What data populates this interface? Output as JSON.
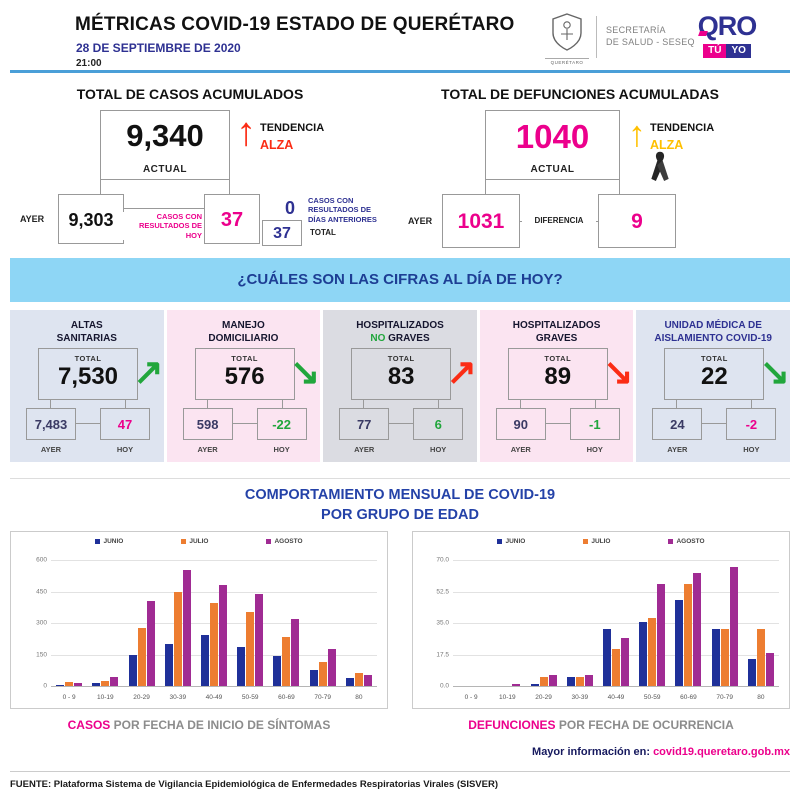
{
  "header": {
    "title": "MÉTRICAS COVID-19 ESTADO DE QUERÉTARO",
    "date": "28 DE SEPTIEMBRE DE 2020",
    "time": "21:00",
    "shield_caption": "QUERÉTARO",
    "secretaria_line1": "SECRETARÍA",
    "secretaria_line2": "DE SALUD - SESEQ",
    "qro_text": "QRO",
    "qro_tu": "TÚ",
    "qro_yo": "YO"
  },
  "cases": {
    "title": "TOTAL DE CASOS ACUMULADOS",
    "actual": "9,340",
    "actual_label": "ACTUAL",
    "trend_label": "TENDENCIA",
    "trend_value": "ALZA",
    "ayer_label": "AYER",
    "ayer": "9,303",
    "today_label": "CASOS CON\nRESULTADOS DE\nHOY",
    "today": "37",
    "previous": "0",
    "previous_label": "CASOS CON\nRESULTADOS DE\nDÍAS ANTERIORES",
    "total": "37",
    "total_label": "TOTAL"
  },
  "deaths": {
    "title": "TOTAL DE DEFUNCIONES ACUMULADAS",
    "actual": "1040",
    "actual_label": "ACTUAL",
    "trend_label": "TENDENCIA",
    "trend_value": "ALZA",
    "ayer_label": "AYER",
    "ayer": "1031",
    "diff_label": "DIFERENCIA",
    "diff": "9"
  },
  "banner": {
    "question": "¿CUÁLES SON LAS CIFRAS AL DÍA DE HOY?"
  },
  "cards_labels": {
    "total": "TOTAL",
    "ayer": "AYER",
    "hoy": "HOY"
  },
  "cards": [
    {
      "line1": "ALTAS",
      "line2": "SANITARIAS",
      "title_color": "#15152e",
      "bg": "#DEE4F0",
      "total": "7,530",
      "ayer": "7,483",
      "hoy": "47",
      "ayer_color": "#3A3A64",
      "hoy_color": "#EC008C",
      "arrow_dir": "up",
      "arrow_color": "#21A63C"
    },
    {
      "line1": "MANEJO",
      "line2": "DOMICILIARIO",
      "title_color": "#15152e",
      "bg": "#FBE4F1",
      "total": "576",
      "ayer": "598",
      "hoy": "-22",
      "ayer_color": "#3A3A64",
      "hoy_color": "#21A63C",
      "arrow_dir": "down",
      "arrow_color": "#21A63C"
    },
    {
      "line1": "HOSPITALIZADOS",
      "line2": "NO GRAVES",
      "line2_highlight": "NO",
      "highlight_color": "#21A63C",
      "title_color": "#15152e",
      "bg": "#DBDCE2",
      "total": "83",
      "ayer": "77",
      "hoy": "6",
      "ayer_color": "#3A3A64",
      "hoy_color": "#21A63C",
      "arrow_dir": "up",
      "arrow_color": "#FB2C15"
    },
    {
      "line1": "HOSPITALIZADOS",
      "line2": "GRAVES",
      "title_color": "#15152e",
      "bg": "#FBE4F1",
      "total": "89",
      "ayer": "90",
      "hoy": "-1",
      "ayer_color": "#3A3A64",
      "hoy_color": "#21A63C",
      "arrow_dir": "down",
      "arrow_color": "#FB2C15"
    },
    {
      "line1": "UNIDAD MÉDICA DE",
      "line2": "AISLAMIENTO COVID-19",
      "title_color": "#2E3192",
      "bg": "#DEE4F0",
      "total": "22",
      "ayer": "24",
      "hoy": "-2",
      "ayer_color": "#3A3A64",
      "hoy_color": "#EC008C",
      "arrow_dir": "down",
      "arrow_color": "#21A63C"
    }
  ],
  "charts_section": {
    "title_line1": "COMPORTAMIENTO MENSUAL DE COVID-19",
    "title_line2": "POR GRUPO DE EDAD"
  },
  "chart_data": [
    {
      "type": "bar",
      "title": "Casos por fecha de inicio de síntomas",
      "caption_highlight": "CASOS",
      "caption_rest": " POR FECHA DE INICIO DE SÍNTOMAS",
      "categories": [
        "0 - 9",
        "10-19",
        "20-29",
        "30-39",
        "40-49",
        "50-59",
        "60-69",
        "70-79",
        "80"
      ],
      "series": [
        {
          "name": "JUNIO",
          "color": "#1F3099",
          "values": [
            4,
            12,
            145,
            195,
            237,
            182,
            140,
            76,
            36
          ]
        },
        {
          "name": "JULIO",
          "color": "#ED7D31",
          "values": [
            20,
            23,
            270,
            440,
            390,
            345,
            230,
            112,
            61
          ]
        },
        {
          "name": "AGOSTO",
          "color": "#A02B93",
          "values": [
            16,
            41,
            400,
            545,
            475,
            430,
            315,
            173,
            52
          ]
        }
      ],
      "xlabel": "",
      "ylabel": "",
      "ylim": [
        0,
        600
      ],
      "yticks": [
        "600",
        "450",
        "300",
        "150",
        "0"
      ],
      "grid": true,
      "legend_position": "top"
    },
    {
      "type": "bar",
      "title": "Defunciones por fecha de ocurrencia",
      "caption_highlight": "DEFUNCIONES",
      "caption_rest": " POR FECHA DE OCURRENCIA",
      "categories": [
        "0 - 9",
        "10-19",
        "20-29",
        "30-39",
        "40-49",
        "50-59",
        "60-69",
        "70-79",
        "80"
      ],
      "series": [
        {
          "name": "JUNIO",
          "color": "#1F3099",
          "values": [
            0,
            0,
            1,
            5,
            31,
            35,
            47,
            31,
            15
          ]
        },
        {
          "name": "JULIO",
          "color": "#ED7D31",
          "values": [
            0,
            0,
            5,
            5,
            20,
            37,
            56,
            31,
            31
          ]
        },
        {
          "name": "AGOSTO",
          "color": "#A02B93",
          "values": [
            0,
            1,
            6,
            6,
            26,
            56,
            62,
            65,
            18
          ]
        }
      ],
      "xlabel": "",
      "ylabel": "",
      "ylim": [
        0,
        70
      ],
      "yticks": [
        "70.0",
        "52.5",
        "35.0",
        "17.5",
        "0.0"
      ],
      "grid": true,
      "legend_position": "top"
    }
  ],
  "footer": {
    "info_label": "Mayor información en:",
    "info_link": "covid19.queretaro.gob.mx",
    "source": "FUENTE: Plataforma Sistema  de Vigilancia Epidemiológica de Enfermedades Respiratorias Virales (SISVER)"
  }
}
